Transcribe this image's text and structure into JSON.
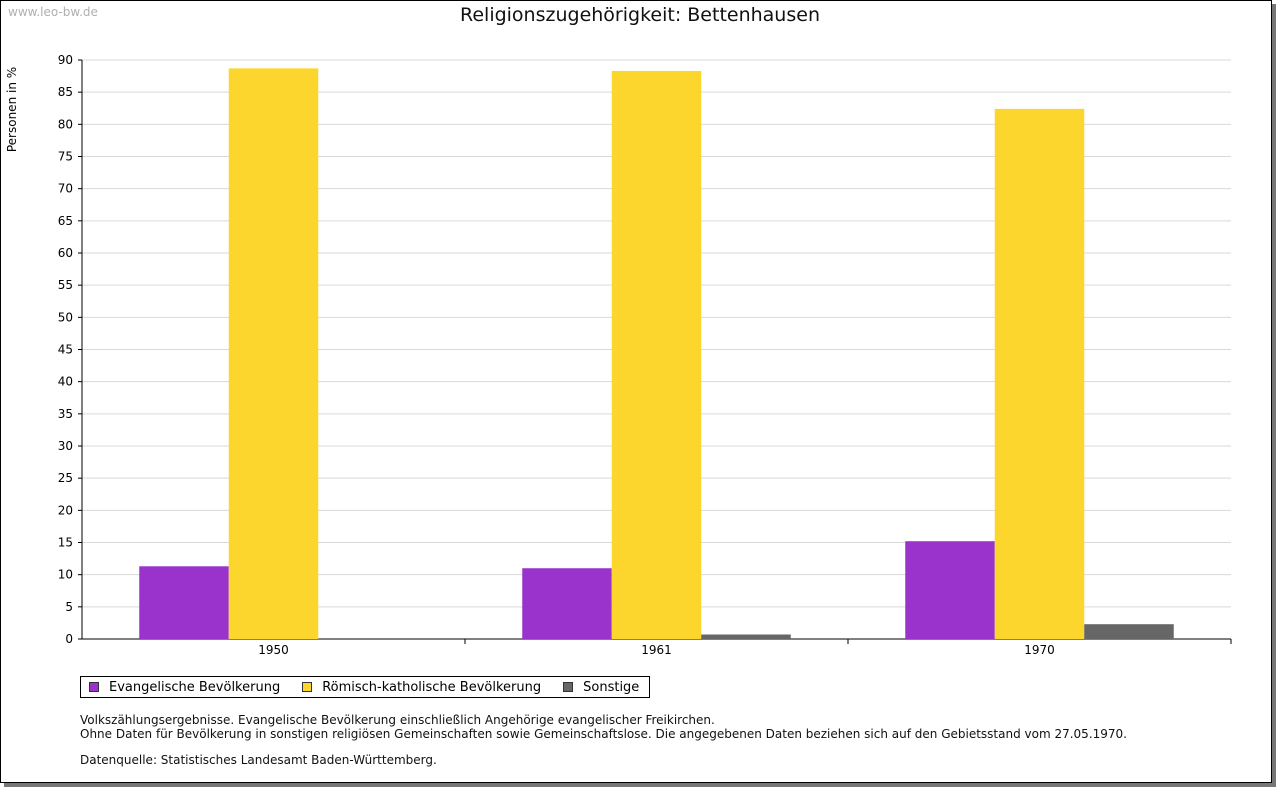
{
  "watermark": "www.leo-bw.de",
  "chart_data": {
    "type": "bar",
    "title": "Religionszugehörigkeit: Bettenhausen",
    "ylabel": "Personen in %",
    "xlabel": "",
    "ylim": [
      0,
      90
    ],
    "yticks": [
      0,
      5,
      10,
      15,
      20,
      25,
      30,
      35,
      40,
      45,
      50,
      55,
      60,
      65,
      70,
      75,
      80,
      85,
      90
    ],
    "categories": [
      "1950",
      "1961",
      "1970"
    ],
    "series": [
      {
        "name": "Evangelische Bevölkerung",
        "color": "#9933cc",
        "values": [
          11.3,
          11.0,
          15.2
        ]
      },
      {
        "name": "Römisch-katholische Bevölkerung",
        "color": "#fcd62d",
        "values": [
          88.7,
          88.3,
          82.4
        ]
      },
      {
        "name": "Sonstige",
        "color": "#666666",
        "values": [
          0,
          0.7,
          2.3
        ]
      }
    ],
    "grid": true,
    "legend": "bottom-left"
  },
  "notes": {
    "line1": "Volkszählungsergebnisse. Evangelische Bevölkerung einschließlich Angehörige evangelischer Freikirchen.",
    "line2": "Ohne Daten für Bevölkerung in sonstigen religiösen Gemeinschaften sowie Gemeinschaftslose. Die angegebenen Daten beziehen sich auf den Gebietsstand vom 27.05.1970.",
    "source": "Datenquelle: Statistisches Landesamt Baden-Württemberg."
  }
}
